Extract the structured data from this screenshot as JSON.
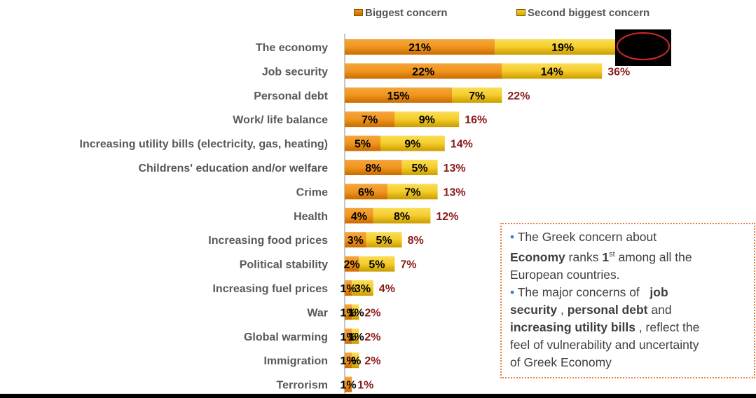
{
  "chart_data": {
    "type": "bar",
    "orientation": "horizontal",
    "stacked": true,
    "categories": [
      "The economy",
      "Job security",
      "Personal debt",
      "Work/ life balance",
      "Increasing utility bills (electricity, gas, heating)",
      "Childrens' education and/or welfare",
      "Crime",
      "Health",
      "Increasing food prices",
      "Political stability",
      "Increasing fuel prices",
      "War",
      "Global warming",
      "Immigration",
      "Terrorism"
    ],
    "series": [
      {
        "name": "Biggest concern",
        "values": [
          21,
          22,
          15,
          7,
          5,
          8,
          6,
          4,
          3,
          2,
          1,
          1,
          1,
          1,
          1
        ],
        "labels": [
          "21%",
          "22%",
          "15%",
          "7%",
          "5%",
          "8%",
          "6%",
          "4%",
          "3%",
          "2%",
          "1%",
          "1%",
          "1%",
          "1%",
          "1%"
        ]
      },
      {
        "name": "Second biggest concern",
        "values": [
          19,
          14,
          7,
          9,
          9,
          5,
          7,
          8,
          5,
          5,
          3,
          1,
          1,
          1,
          0
        ],
        "labels": [
          "19%",
          "14%",
          "7%",
          "9%",
          "9%",
          "5%",
          "7%",
          "8%",
          "5%",
          "5%",
          "3%",
          "1%",
          "1%",
          "%",
          ""
        ]
      }
    ],
    "totals": [
      "",
      "36%",
      "22%",
      "16%",
      "14%",
      "13%",
      "13%",
      "12%",
      "8%",
      "7%",
      "4%",
      "2%",
      "2%",
      "2%",
      "1%"
    ],
    "legend_position": "top",
    "colors": {
      "biggest": "#f0961c",
      "biggest_dark": "#c96a00",
      "second": "#f5cc2a",
      "second_dark": "#d8a800",
      "total_label": "#8b1a1a",
      "value_label": "#000000",
      "category_label": "#595959"
    }
  },
  "callout": {
    "line1": "The Greek concern about",
    "economy": "Economy",
    "ranks": "ranks",
    "first_num": "1",
    "first_sup": "st",
    "among": "among all the",
    "line3": "European countries.",
    "line4a": "The major concerns of",
    "job": "job",
    "security": "security",
    "comma1": ",",
    "personal_debt": "personal debt",
    "and": "and",
    "utility": "increasing utility bills",
    "reflect": ", reflect the",
    "line7": "feel of vulnerability and uncertainty",
    "line8": "of Greek Economy"
  }
}
